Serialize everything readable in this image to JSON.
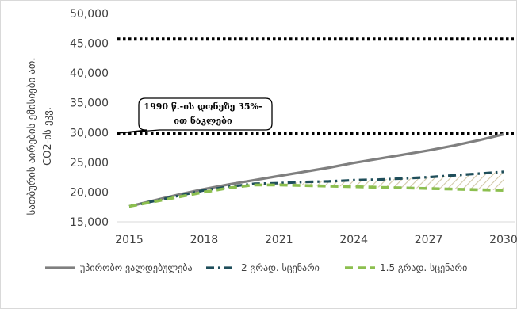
{
  "chart_data": {
    "type": "line",
    "ylabel_line1": "სათბურის აირების ემისიები ათ.",
    "ylabel_line2": "CO2-ის ეკვ.",
    "ylim": [
      15000,
      50000
    ],
    "yticks": [
      "15,000",
      "20,000",
      "25,000",
      "30,000",
      "35,000",
      "40,000",
      "45,000",
      "50,000"
    ],
    "ytick_values": [
      15000,
      20000,
      25000,
      30000,
      35000,
      40000,
      45000,
      50000
    ],
    "xlim": [
      2015,
      2030
    ],
    "xticks": [
      "2015",
      "2018",
      "2021",
      "2024",
      "2027",
      "2030"
    ],
    "xtick_values": [
      2015,
      2018,
      2021,
      2024,
      2027,
      2030
    ],
    "grid": false,
    "legend_position": "bottom",
    "x": [
      2015,
      2016,
      2017,
      2018,
      2019,
      2020,
      2021,
      2022,
      2023,
      2024,
      2025,
      2026,
      2027,
      2028,
      2029,
      2030
    ],
    "series": [
      {
        "name": "უპირობო ვალდებულება",
        "color": "#7f7f7f",
        "style": "solid",
        "values": [
          17600,
          18600,
          19600,
          20500,
          21300,
          22000,
          22700,
          23400,
          24100,
          24900,
          25600,
          26300,
          27000,
          27800,
          28700,
          29700
        ]
      },
      {
        "name": "2 გრად. სცენარი",
        "color": "#1f4e5a",
        "style": "dash-dot",
        "values": [
          17600,
          18500,
          19400,
          20300,
          20900,
          21400,
          21500,
          21700,
          21800,
          22000,
          22100,
          22300,
          22500,
          22800,
          23100,
          23400
        ]
      },
      {
        "name": "1.5 გრად. სცენარი",
        "color": "#8cbf4f",
        "style": "dash",
        "values": [
          17600,
          18400,
          19200,
          20000,
          20700,
          21200,
          21200,
          21100,
          21000,
          20900,
          20800,
          20700,
          20600,
          20500,
          20400,
          20300
        ]
      }
    ],
    "reference_lines": [
      {
        "value": 45700,
        "color": "#000000"
      },
      {
        "value": 29900,
        "color": "#000000"
      }
    ],
    "annotation": {
      "text_line1": "1990 წ.-ის დონეზე 35%-",
      "text_line2": "ით ნაკლები",
      "points_to": 29900
    }
  }
}
